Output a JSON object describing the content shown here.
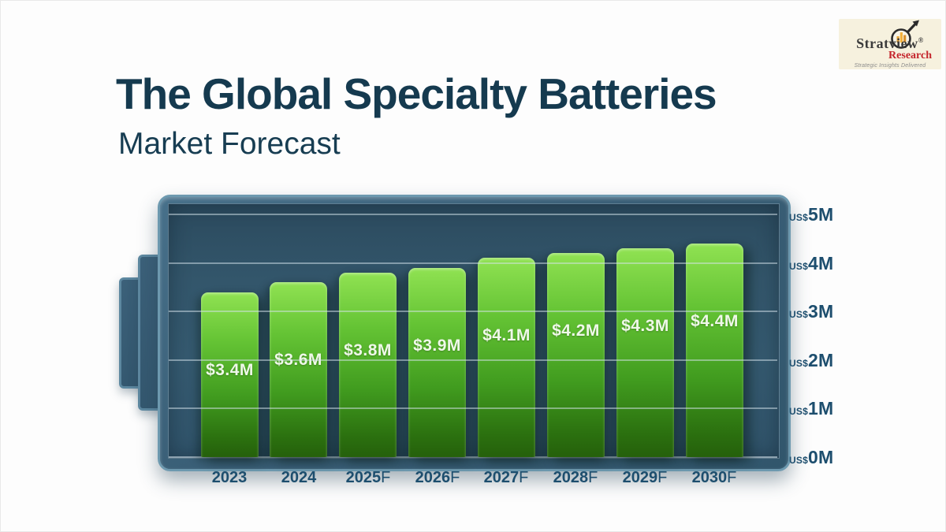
{
  "header": {
    "title": "The Global Specialty Batteries",
    "subtitle": "Market Forecast"
  },
  "logo": {
    "brand": "Stratview",
    "registered": "®",
    "sub_brand": "Research",
    "tagline": "Strategic Insights Delivered"
  },
  "chart_data": {
    "type": "bar",
    "title": "The Global Specialty Batteries Market Forecast",
    "categories": [
      "2023",
      "2024",
      "2025F",
      "2026F",
      "2027F",
      "2028F",
      "2029F",
      "2030F"
    ],
    "x_labels": [
      {
        "year": "2023",
        "suffix": ""
      },
      {
        "year": "2024",
        "suffix": ""
      },
      {
        "year": "2025",
        "suffix": "F"
      },
      {
        "year": "2026",
        "suffix": "F"
      },
      {
        "year": "2027",
        "suffix": "F"
      },
      {
        "year": "2028",
        "suffix": "F"
      },
      {
        "year": "2029",
        "suffix": "F"
      },
      {
        "year": "2030",
        "suffix": "F"
      }
    ],
    "values": [
      3.4,
      3.6,
      3.8,
      3.9,
      4.1,
      4.2,
      4.3,
      4.4
    ],
    "bar_labels": [
      "$3.4M",
      "$3.6M",
      "$3.8M",
      "$3.9M",
      "$4.1M",
      "$4.2M",
      "$4.3M",
      "$4.4M"
    ],
    "y_axis": {
      "range": [
        0,
        5
      ],
      "ticks": [
        {
          "prefix": "US$",
          "big": "5M",
          "value": 5
        },
        {
          "prefix": "US$",
          "big": "4M",
          "value": 4
        },
        {
          "prefix": "US$",
          "big": "3M",
          "value": 3
        },
        {
          "prefix": "US$",
          "big": "2M",
          "value": 2
        },
        {
          "prefix": "US$",
          "big": "1M",
          "value": 1
        },
        {
          "prefix": "US$",
          "big": "0M",
          "value": 0
        }
      ]
    },
    "grid": true,
    "legend": false,
    "xlabel": "",
    "ylabel": "",
    "colors": {
      "bar_top": "#90e252",
      "bar_bottom": "#25600b",
      "panel": "#33566b",
      "battery_border": "#6d99af",
      "axis_text": "#1d4e6e",
      "title_text": "#153a4f",
      "value_text": "#eff8e9",
      "logo_red": "#c4242b",
      "logo_cream": "#f6f1de"
    }
  }
}
